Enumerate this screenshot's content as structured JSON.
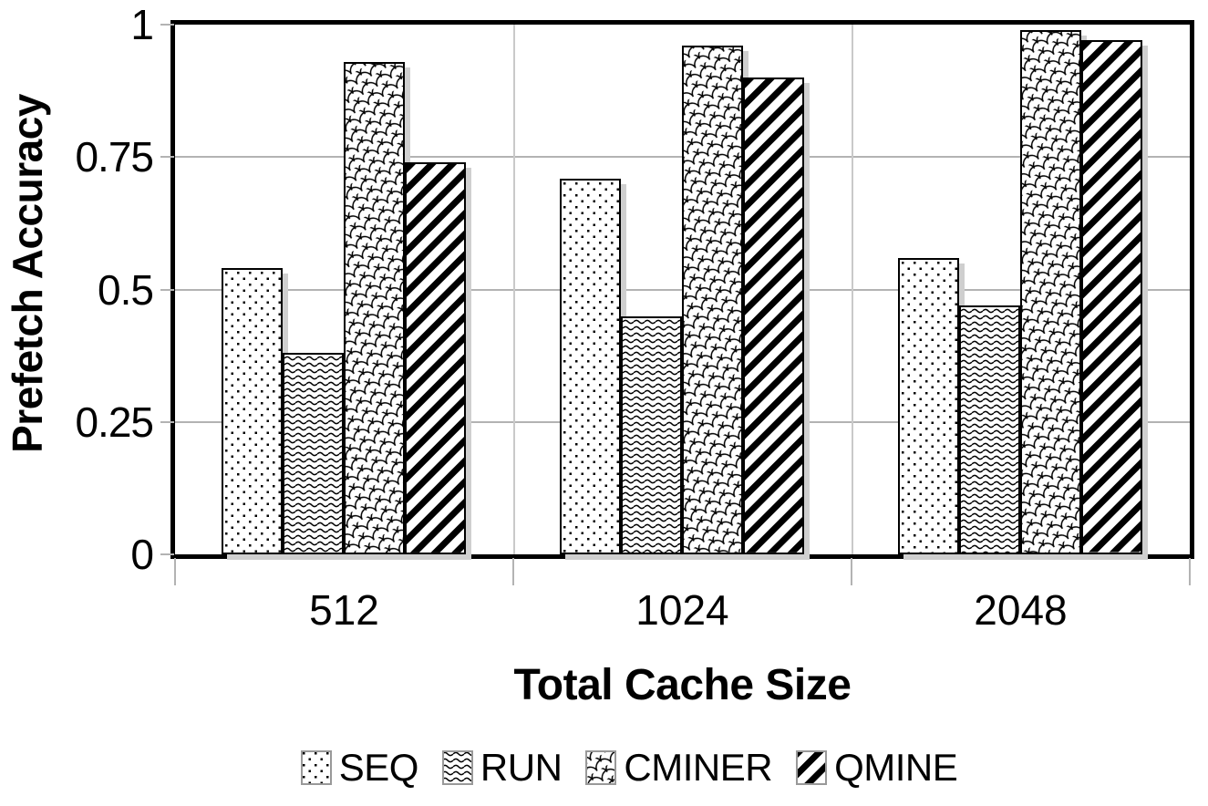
{
  "chart_data": {
    "type": "bar",
    "title": "",
    "xlabel": "Total Cache Size",
    "ylabel": "Prefetch Accuracy",
    "categories": [
      "512",
      "1024",
      "2048"
    ],
    "series": [
      {
        "name": "SEQ",
        "pattern": "dots-pattern",
        "values": [
          0.54,
          0.71,
          0.56
        ]
      },
      {
        "name": "RUN",
        "pattern": "waves-pattern",
        "values": [
          0.38,
          0.45,
          0.47
        ]
      },
      {
        "name": "CMINER",
        "pattern": "scales-pattern",
        "values": [
          0.93,
          0.96,
          0.99
        ]
      },
      {
        "name": "QMINE",
        "pattern": "diagonal-pattern",
        "values": [
          0.74,
          0.9,
          0.97
        ]
      }
    ],
    "ylim": [
      0,
      1
    ],
    "yticks": [
      {
        "value": 1,
        "label": "1"
      },
      {
        "value": 0.75,
        "label": "0.75"
      },
      {
        "value": 0.5,
        "label": "0.5"
      },
      {
        "value": 0.25,
        "label": "0.25"
      },
      {
        "value": 0,
        "label": "0"
      }
    ],
    "grid": true,
    "legend_position": "bottom"
  },
  "colors": {
    "background": "#ffffff",
    "bar_fill": "#ffffff",
    "bar_stroke": "#000000",
    "gridline": "#b3b3b3",
    "shadow": "#cfcfcf",
    "text": "#000000",
    "legend_swatch_border": "#999999"
  }
}
